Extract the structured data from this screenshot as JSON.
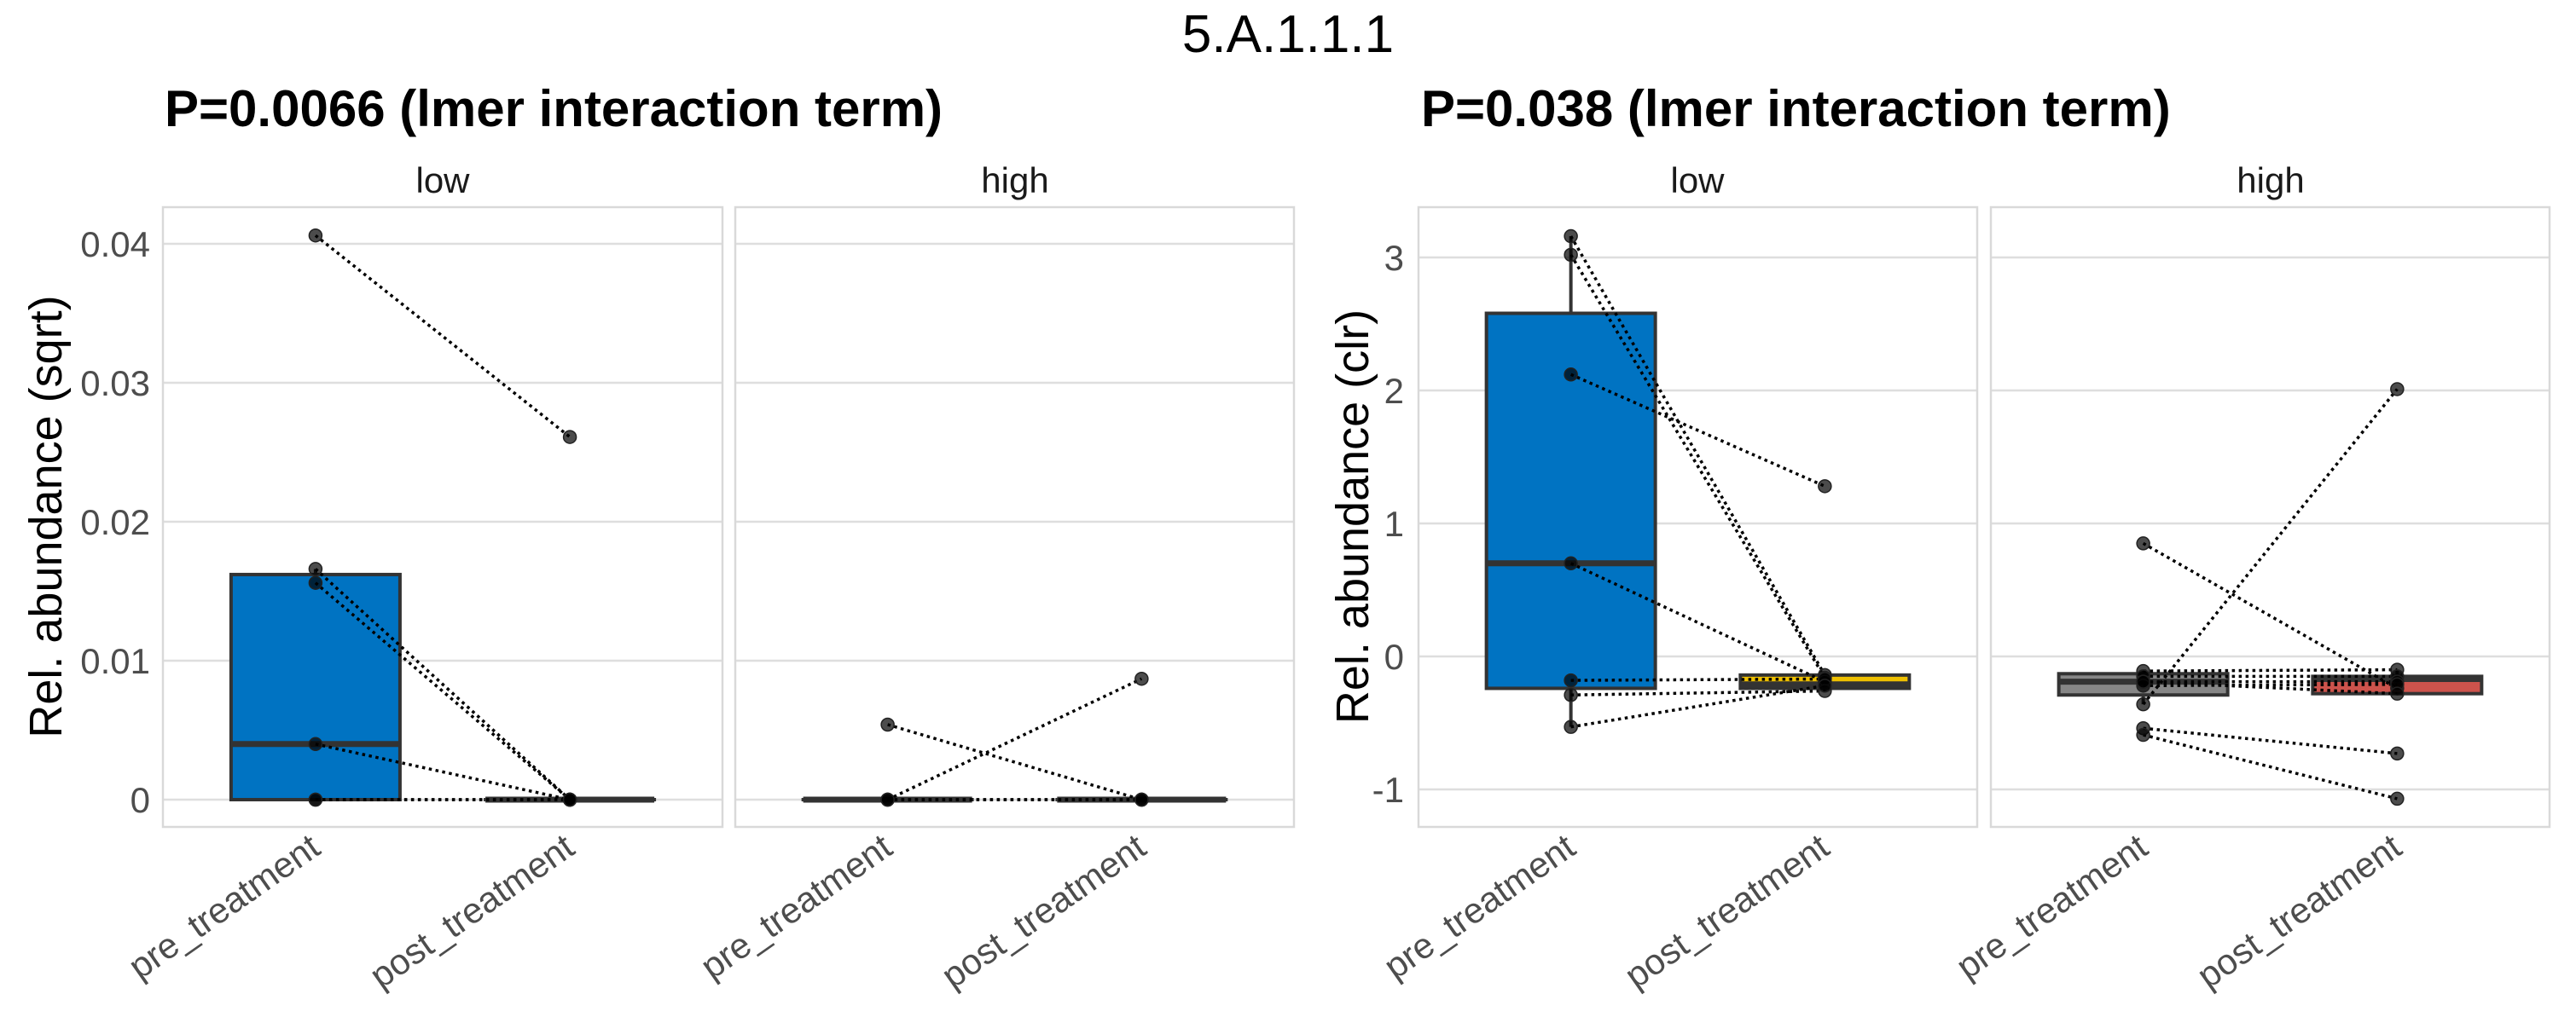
{
  "title": "5.A.1.1.1",
  "colors": {
    "pre_low": "#0073C2",
    "post_low": "#EFC000",
    "pre_high": "#868686",
    "post_high": "#CD534C",
    "points": "#000000",
    "grid": "#dedede",
    "panel_border": "#d9d9d9"
  },
  "chart_data": [
    {
      "type": "boxplot",
      "title": "P=0.0066 (lmer interaction term)",
      "ylabel": "Rel. abundance (sqrt)",
      "xlabel": "",
      "ylim": [
        -0.002,
        0.042
      ],
      "yticks": [
        0,
        0.01,
        0.02,
        0.03,
        0.04
      ],
      "ytick_labels": [
        "0",
        "0.01",
        "0.02",
        "0.03",
        "0.04"
      ],
      "grid": true,
      "categories": [
        "pre_treatment",
        "post_treatment"
      ],
      "facets": [
        {
          "label": "low",
          "boxes": [
            {
              "category": "pre_treatment",
              "fill_key": "pre_low",
              "q1": 0,
              "median": 0.004,
              "q3": 0.0162,
              "whisker_low": 0,
              "whisker_high": 0.0166
            },
            {
              "category": "post_treatment",
              "fill_key": "post_low",
              "q1": 0,
              "median": 0,
              "q3": 0,
              "whisker_low": 0,
              "whisker_high": 0
            }
          ],
          "outliers": [
            {
              "category": "pre_treatment",
              "y": 0.0406
            },
            {
              "category": "post_treatment",
              "y": 0.0261
            }
          ],
          "pairs": [
            {
              "pre": 0.0406,
              "post": 0.0261
            },
            {
              "pre": 0.0166,
              "post": 0
            },
            {
              "pre": 0.0156,
              "post": 0
            },
            {
              "pre": 0.004,
              "post": 0
            },
            {
              "pre": 0,
              "post": 0
            },
            {
              "pre": 0,
              "post": 0
            }
          ]
        },
        {
          "label": "high",
          "boxes": [
            {
              "category": "pre_treatment",
              "fill_key": "pre_high",
              "q1": 0,
              "median": 0,
              "q3": 0,
              "whisker_low": 0,
              "whisker_high": 0
            },
            {
              "category": "post_treatment",
              "fill_key": "post_high",
              "q1": 0,
              "median": 0,
              "q3": 0,
              "whisker_low": 0,
              "whisker_high": 0
            }
          ],
          "outliers": [
            {
              "category": "pre_treatment",
              "y": 0.0054
            },
            {
              "category": "post_treatment",
              "y": 0.0087
            }
          ],
          "pairs": [
            {
              "pre": 0.0054,
              "post": 0
            },
            {
              "pre": 0,
              "post": 0.0087
            },
            {
              "pre": 0,
              "post": 0
            },
            {
              "pre": 0,
              "post": 0
            }
          ]
        }
      ]
    },
    {
      "type": "boxplot",
      "title": "P=0.038 (lmer interaction term)",
      "ylabel": "Rel. abundance (clr)",
      "xlabel": "",
      "ylim": [
        -1.28,
        3.38
      ],
      "yticks": [
        -1,
        0,
        1,
        2,
        3
      ],
      "ytick_labels": [
        "-1",
        "0",
        "1",
        "2",
        "3"
      ],
      "grid": true,
      "categories": [
        "pre_treatment",
        "post_treatment"
      ],
      "facets": [
        {
          "label": "low",
          "boxes": [
            {
              "category": "pre_treatment",
              "fill_key": "pre_low",
              "q1": -0.24,
              "median": 0.7,
              "q3": 2.58,
              "whisker_low": -0.53,
              "whisker_high": 3.16
            },
            {
              "category": "post_treatment",
              "fill_key": "post_low",
              "q1": -0.24,
              "median": -0.21,
              "q3": -0.14,
              "whisker_low": -0.26,
              "whisker_high": -0.13
            }
          ],
          "outliers": [
            {
              "category": "post_treatment",
              "y": 1.28
            }
          ],
          "pairs": [
            {
              "pre": 3.16,
              "post": -0.14
            },
            {
              "pre": 3.02,
              "post": -0.16
            },
            {
              "pre": 2.12,
              "post": 1.28
            },
            {
              "pre": 0.7,
              "post": -0.19
            },
            {
              "pre": -0.18,
              "post": -0.17
            },
            {
              "pre": -0.29,
              "post": -0.26
            },
            {
              "pre": -0.53,
              "post": -0.22
            }
          ]
        },
        {
          "label": "high",
          "boxes": [
            {
              "category": "pre_treatment",
              "fill_key": "pre_high",
              "q1": -0.29,
              "median": -0.19,
              "q3": -0.13,
              "whisker_low": -0.36,
              "whisker_high": -0.11
            },
            {
              "category": "post_treatment",
              "fill_key": "post_high",
              "q1": -0.28,
              "median": -0.17,
              "q3": -0.15,
              "whisker_low": -0.28,
              "whisker_high": -0.1
            }
          ],
          "outliers": [
            {
              "category": "pre_treatment",
              "y": 0.85
            },
            {
              "category": "pre_treatment",
              "y": -0.54
            },
            {
              "category": "pre_treatment",
              "y": -0.59
            },
            {
              "category": "post_treatment",
              "y": 2.01
            },
            {
              "category": "post_treatment",
              "y": -0.73
            },
            {
              "category": "post_treatment",
              "y": -1.07
            }
          ],
          "pairs": [
            {
              "pre": 0.85,
              "post": -0.24
            },
            {
              "pre": -0.36,
              "post": 2.01
            },
            {
              "pre": -0.11,
              "post": -0.1
            },
            {
              "pre": -0.15,
              "post": -0.15
            },
            {
              "pre": -0.19,
              "post": -0.19
            },
            {
              "pre": -0.22,
              "post": -0.21
            },
            {
              "pre": -0.19,
              "post": -0.28
            },
            {
              "pre": -0.54,
              "post": -0.73
            },
            {
              "pre": -0.59,
              "post": -1.07
            }
          ]
        }
      ]
    }
  ]
}
